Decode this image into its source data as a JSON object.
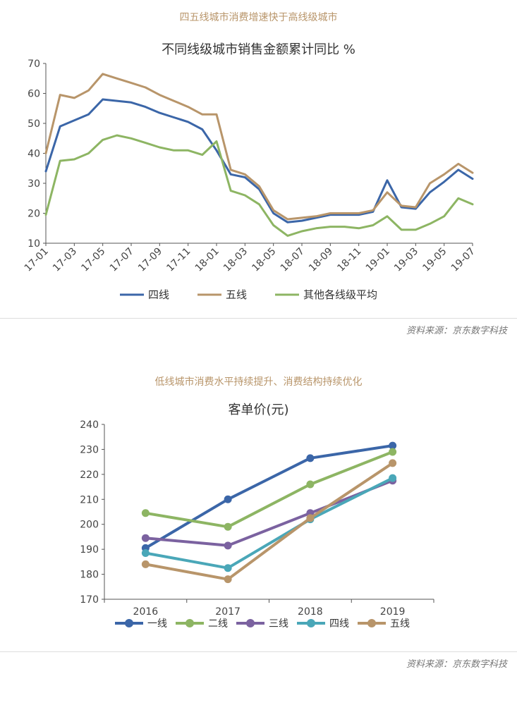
{
  "top": {
    "section_title": "四五线城市消费增速快于高线级城市",
    "source": "资料来源：京东数字科技"
  },
  "bottom": {
    "section_title": "低线城市消费水平持续提升、消费结构持续优化",
    "source": "资料来源：京东数字科技"
  },
  "colors": {
    "blue": "#3b66a8",
    "tan": "#b8956a",
    "green": "#8db563",
    "purple": "#7b62a0",
    "teal": "#4aa7b8"
  },
  "chart_data": [
    {
      "type": "line",
      "title": "不同线级城市销售金额累计同比  %",
      "xlabel": "",
      "ylabel": "",
      "ylim": [
        10,
        70
      ],
      "yticks": [
        "10",
        "20",
        "30",
        "40",
        "50",
        "60",
        "70"
      ],
      "x_tick_labels": [
        "17-01",
        "17-03",
        "17-05",
        "17-07",
        "17-09",
        "17-11",
        "18-01",
        "18-03",
        "18-05",
        "18-07",
        "18-09",
        "18-11",
        "19-01",
        "19-03",
        "19-05",
        "19-07"
      ],
      "x": [
        "17-01",
        "17-02",
        "17-03",
        "17-04",
        "17-05",
        "17-06",
        "17-07",
        "17-08",
        "17-09",
        "17-10",
        "17-11",
        "17-12",
        "18-01",
        "18-02",
        "18-03",
        "18-04",
        "18-05",
        "18-06",
        "18-07",
        "18-08",
        "18-09",
        "18-10",
        "18-11",
        "18-12",
        "19-01",
        "19-02",
        "19-03",
        "19-04",
        "19-05",
        "19-06",
        "19-07"
      ],
      "legend_position": "bottom",
      "series": [
        {
          "name": "四线",
          "color": "#3b66a8",
          "values": [
            34,
            49,
            51,
            53,
            58,
            57.5,
            57,
            55.5,
            53.5,
            52,
            50.5,
            48,
            41,
            33,
            32,
            28,
            20,
            17,
            17.5,
            18.5,
            19.5,
            19.5,
            19.5,
            20.5,
            31,
            22,
            21.5,
            27,
            30.5,
            34.5,
            31.5
          ]
        },
        {
          "name": "五线",
          "color": "#b8956a",
          "values": [
            40,
            59.5,
            58.5,
            61,
            66.5,
            65,
            63.5,
            62,
            59.5,
            57.5,
            55.5,
            53,
            53,
            34.5,
            33,
            29,
            21,
            18,
            18.5,
            19,
            20,
            20,
            20,
            21,
            27,
            22.5,
            22,
            30,
            33,
            36.5,
            33.5
          ]
        },
        {
          "name": "其他各线级平均",
          "color": "#8db563",
          "values": [
            19.5,
            37.5,
            38,
            40,
            44.5,
            46,
            45,
            43.5,
            42,
            41,
            41,
            39.5,
            44,
            27.5,
            26,
            23,
            16,
            12.5,
            14,
            15,
            15.5,
            15.5,
            15,
            16,
            19,
            14.5,
            14.5,
            16.5,
            19,
            25,
            23
          ]
        }
      ]
    },
    {
      "type": "line",
      "title": "客单价(元)",
      "xlabel": "",
      "ylabel": "",
      "ylim": [
        170,
        240
      ],
      "yticks": [
        "170",
        "180",
        "190",
        "200",
        "210",
        "220",
        "230",
        "240"
      ],
      "categories": [
        "2016",
        "2017",
        "2018",
        "2019"
      ],
      "legend_position": "bottom",
      "series": [
        {
          "name": "一线",
          "color": "#3b66a8",
          "values": [
            190.5,
            210,
            226.5,
            231.5
          ]
        },
        {
          "name": "二线",
          "color": "#8db563",
          "values": [
            204.5,
            199,
            216,
            229
          ]
        },
        {
          "name": "三线",
          "color": "#7b62a0",
          "values": [
            194.5,
            191.5,
            204.5,
            217.5
          ]
        },
        {
          "name": "四线",
          "color": "#4aa7b8",
          "values": [
            188.5,
            182.5,
            202,
            218.5
          ]
        },
        {
          "name": "五线",
          "color": "#b8956a",
          "values": [
            184,
            178,
            202.5,
            224.5
          ]
        }
      ]
    }
  ]
}
